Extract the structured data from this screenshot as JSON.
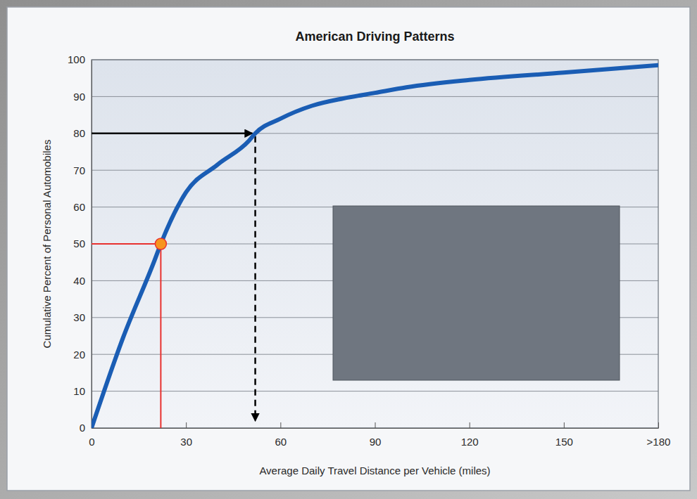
{
  "chart_data": {
    "type": "line",
    "title": "American Driving Patterns",
    "x_label": "Average Daily Travel Distance per Vehicle (miles)",
    "y_label": "Cumulative Percent of Personal Automobiles",
    "x": [
      0,
      10,
      20,
      22,
      30,
      40,
      50,
      52,
      60,
      70,
      80,
      90,
      100,
      120,
      150,
      180
    ],
    "values": [
      0,
      24.5,
      45.5,
      50,
      64,
      71.5,
      78,
      80,
      84,
      87.5,
      89.5,
      91,
      92.5,
      94.5,
      96.5,
      98.5
    ],
    "color": "#1a5db4",
    "xlim": [
      0,
      180
    ],
    "ylim": [
      0,
      100
    ],
    "xticks": [
      0,
      30,
      60,
      90,
      120,
      150,
      {
        "value": 180,
        "label": ">180"
      }
    ],
    "yticks": [
      0,
      10,
      20,
      30,
      40,
      50,
      60,
      70,
      80,
      90,
      100
    ],
    "grid": true,
    "highlights": [
      {
        "x": 22,
        "y": 50,
        "color": "#e8312f",
        "marker": "circle",
        "line_style": "solid"
      },
      {
        "x": 52,
        "y": 80,
        "color": "#000000",
        "line_style": "arrow"
      }
    ]
  }
}
